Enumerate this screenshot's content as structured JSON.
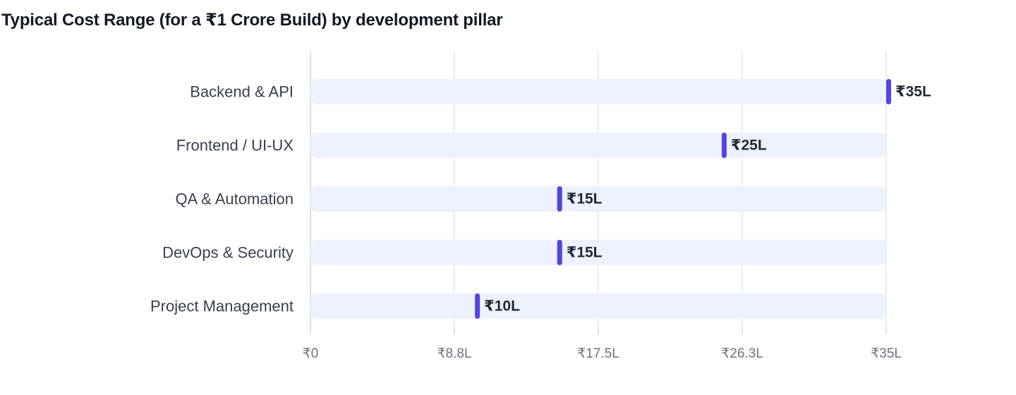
{
  "chart_data": {
    "type": "bar",
    "title": "Typical Cost Range (for a ₹1 Crore Build) by development pillar",
    "xlabel": "",
    "ylabel": "",
    "orientation": "horizontal",
    "categories": [
      "Backend & API",
      "Frontend / UI-UX",
      "QA & Automation",
      "DevOps & Security",
      "Project Management"
    ],
    "values": [
      35,
      25,
      15,
      15,
      10
    ],
    "value_labels": [
      "₹35L",
      "₹25L",
      "₹15L",
      "₹15L",
      "₹10L"
    ],
    "xlim": [
      0,
      35
    ],
    "x_ticks": [
      0,
      8.75,
      17.5,
      26.25,
      35
    ],
    "x_tick_labels": [
      "₹0",
      "₹8.8L",
      "₹17.5L",
      "₹26.3L",
      "₹35L"
    ],
    "grid": true,
    "colors": {
      "track": "#eef2fe",
      "marker": "#4f46e5",
      "grid": "#e5e7eb",
      "axis": "#d1d5db"
    }
  }
}
